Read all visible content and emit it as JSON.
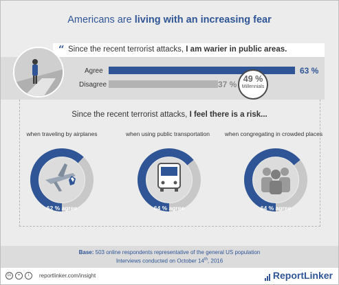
{
  "title": {
    "prefix": "Americans are ",
    "bold": "living with an increasing fear"
  },
  "question1": {
    "prefix": "Since the recent terrorist attacks, ",
    "bold": "I am warier in public areas."
  },
  "chart_data": [
    {
      "type": "bar",
      "categories": [
        "Agree",
        "Disagree"
      ],
      "values": [
        63,
        37
      ],
      "value_labels": [
        "63 %",
        "37 %"
      ],
      "xlim": [
        0,
        63
      ],
      "colors": [
        "#2f5596",
        "#b3b3b3"
      ],
      "annotation": {
        "value": "49 %",
        "label": "Millennials"
      }
    },
    {
      "type": "pie",
      "title_prefix": "Since the recent terrorist attacks, ",
      "title_bold": "I feel there is a risk...",
      "categories": [
        "when traveling by airplanes",
        "when using public transportation",
        "when congregating in crowded places"
      ],
      "values": [
        62,
        64,
        64
      ],
      "value_labels": [
        "62 % agree",
        "64 % agree",
        "64 % agree"
      ],
      "colors": {
        "agree": "#2f5596",
        "rest": "#c8c8c8"
      }
    }
  ],
  "source": {
    "label": "Base:",
    "line1": " 503 online respondents representative of the general US population",
    "line2_prefix": "Interviews conducted on October 14",
    "line2_sup": "th",
    "line2_suffix": ", 2016"
  },
  "footer": {
    "link": "reportlinker.com/insight",
    "logo": "ReportLinker",
    "cc_icons": [
      "cc",
      "=",
      "i"
    ]
  },
  "icons": [
    "person-icon",
    "airplane-icon",
    "bus-icon",
    "crowd-icon",
    "quote-icon",
    "creative-commons-icon",
    "logo-bars-icon"
  ]
}
